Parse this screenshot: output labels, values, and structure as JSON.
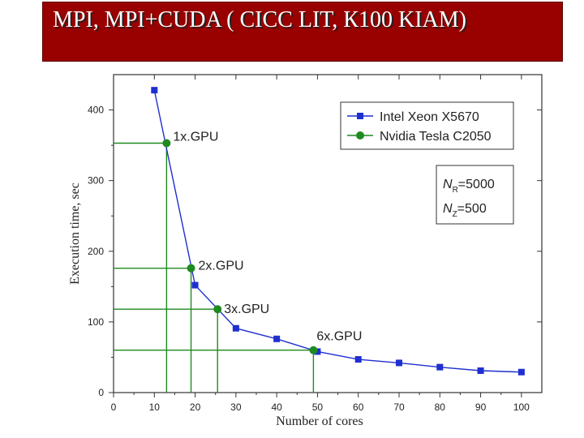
{
  "slide": {
    "title": "MPI, MPI+CUDA ( СICC LIT, К100 KIAM)"
  },
  "chart_data": {
    "type": "line",
    "xlabel": "Number of cores",
    "ylabel": "Execution time, sec",
    "xlim": [
      0,
      105
    ],
    "ylim": [
      0,
      450
    ],
    "xticks": [
      0,
      10,
      20,
      30,
      40,
      50,
      60,
      70,
      80,
      90,
      100
    ],
    "yticks": [
      0,
      100,
      200,
      300,
      400
    ],
    "grid": false,
    "legend": {
      "placement": "top-right",
      "entries": [
        {
          "name": "Intel Xeon X5670",
          "color": "#1f2fd0",
          "marker": "square"
        },
        {
          "name": "Nvidia Tesla C2050",
          "color": "#1f8a1f",
          "marker": "circle"
        }
      ]
    },
    "series": [
      {
        "name": "Intel Xeon X5670",
        "color": "#1f2fd0",
        "x": [
          10,
          20,
          30,
          40,
          50,
          60,
          70,
          80,
          90,
          100
        ],
        "y": [
          428,
          152,
          91,
          76,
          58,
          47,
          42,
          36,
          31,
          29
        ]
      },
      {
        "name": "Nvidia Tesla C2050",
        "color": "#1f8a1f",
        "x": [
          13,
          19,
          25.5,
          49
        ],
        "y": [
          353,
          176,
          118,
          60
        ],
        "labels": [
          "1x.GPU",
          "2x.GPU",
          "3x.GPU",
          "6x.GPU"
        ]
      }
    ],
    "params": {
      "nr_symbol": "N",
      "nr_sub": "R",
      "nr_value": "=5000",
      "nz_symbol": "N",
      "nz_sub": "Z",
      "nz_value": "=500"
    }
  }
}
